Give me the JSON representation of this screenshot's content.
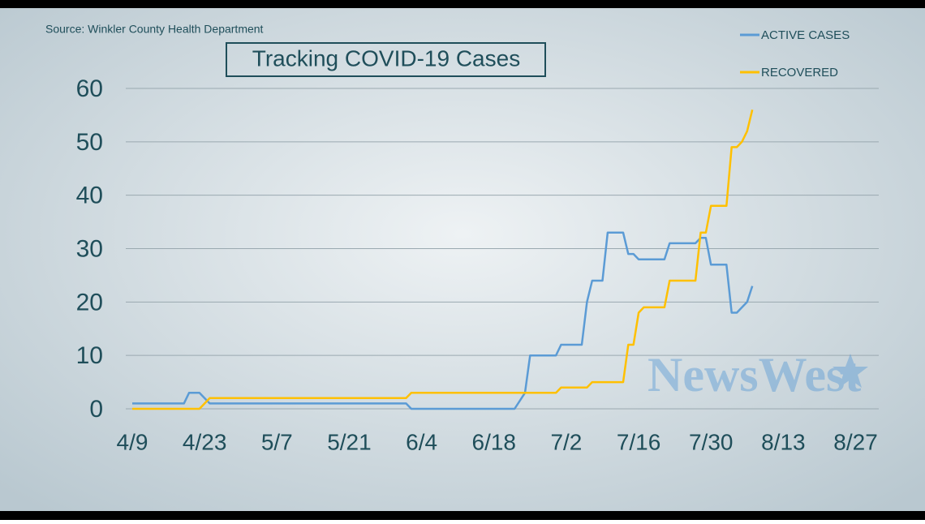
{
  "chart_data": {
    "type": "line",
    "source": "Source: Winkler County Health Department",
    "title": "Tracking COVID-19 Cases",
    "watermark": "NewsWest",
    "x": [
      "4/9",
      "4/19",
      "4/20",
      "4/22",
      "4/24",
      "6/1",
      "6/2",
      "6/22",
      "6/24",
      "6/25",
      "6/30",
      "7/1",
      "7/5",
      "7/6",
      "7/7",
      "7/9",
      "7/10",
      "7/13",
      "7/14",
      "7/15",
      "7/16",
      "7/17",
      "7/21",
      "7/22",
      "7/27",
      "7/28",
      "7/29",
      "7/30",
      "8/2",
      "8/3",
      "8/4",
      "8/5",
      "8/6",
      "8/7"
    ],
    "series": [
      {
        "name": "ACTIVE CASES",
        "color": "#5b9bd5",
        "values": [
          1,
          1,
          3,
          3,
          1,
          1,
          0,
          0,
          3,
          10,
          10,
          12,
          12,
          20,
          24,
          24,
          33,
          33,
          29,
          29,
          28,
          28,
          28,
          31,
          31,
          32,
          32,
          27,
          27,
          18,
          18,
          19,
          20,
          23
        ]
      },
      {
        "name": "RECOVERED",
        "color": "#ffc000",
        "values": [
          0,
          0,
          0,
          0,
          2,
          2,
          3,
          3,
          3,
          3,
          3,
          4,
          4,
          4,
          5,
          5,
          5,
          5,
          12,
          12,
          18,
          19,
          19,
          24,
          24,
          33,
          33,
          38,
          38,
          49,
          49,
          50,
          52,
          56
        ]
      }
    ],
    "xlim": [
      "4/9",
      "8/31"
    ],
    "xticks": [
      "4/9",
      "4/23",
      "5/7",
      "5/21",
      "6/4",
      "6/18",
      "7/2",
      "7/16",
      "7/30",
      "8/13",
      "8/27"
    ],
    "ylim": [
      0,
      60
    ],
    "yticks": [
      0,
      10,
      20,
      30,
      40,
      50,
      60
    ],
    "grid": true
  }
}
